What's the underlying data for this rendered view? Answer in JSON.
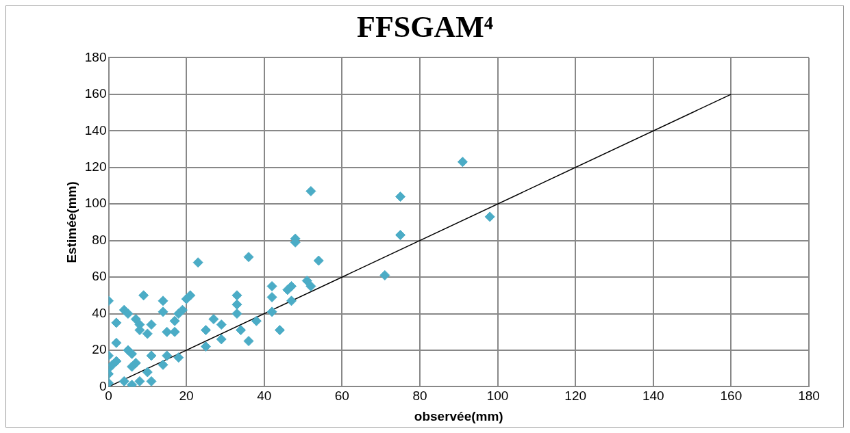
{
  "chart_data": {
    "type": "scatter",
    "title": "FFSGAM⁴",
    "xlabel": "observée(mm)",
    "ylabel": "Estimée(mm)",
    "xlim": [
      0,
      180
    ],
    "xticks": [
      0,
      20,
      40,
      60,
      80,
      100,
      120,
      140,
      160,
      180
    ],
    "ylim": [
      0,
      180
    ],
    "yticks": [
      0,
      20,
      40,
      60,
      80,
      100,
      120,
      140,
      160,
      180
    ],
    "grid": true,
    "legend": false,
    "marker": "diamond",
    "series": [
      {
        "color": "#4bacc6",
        "x": [
          0,
          0,
          0,
          0,
          0,
          1,
          2,
          2,
          2,
          4,
          4,
          5,
          5,
          6,
          6,
          6,
          7,
          7,
          8,
          8,
          8,
          9,
          10,
          10,
          11,
          11,
          11,
          14,
          14,
          14,
          15,
          15,
          17,
          17,
          18,
          18,
          19,
          20,
          21,
          23,
          25,
          25,
          27,
          29,
          29,
          33,
          33,
          33,
          34,
          36,
          36,
          38,
          42,
          42,
          42,
          44,
          46,
          47,
          47,
          48,
          48,
          51,
          52,
          52,
          54,
          71,
          75,
          75,
          91,
          98
        ],
        "values": [
          47,
          17,
          10,
          7,
          2,
          12,
          35,
          24,
          14,
          3,
          42,
          40,
          20,
          1,
          18,
          11,
          37,
          13,
          34,
          3,
          31,
          50,
          29,
          8,
          34,
          17,
          3,
          41,
          47,
          12,
          30,
          17,
          30,
          36,
          16,
          40,
          42,
          48,
          50,
          68,
          22,
          31,
          37,
          34,
          26,
          40,
          50,
          45,
          31,
          25,
          71,
          36,
          41,
          49,
          55,
          31,
          53,
          47,
          55,
          81,
          79,
          58,
          55,
          107,
          69,
          61,
          104,
          83,
          123,
          93
        ]
      },
      {
        "type": "line",
        "color": "#000000",
        "marker": "none",
        "x": [
          0,
          160
        ],
        "values": [
          0,
          160
        ]
      }
    ]
  }
}
